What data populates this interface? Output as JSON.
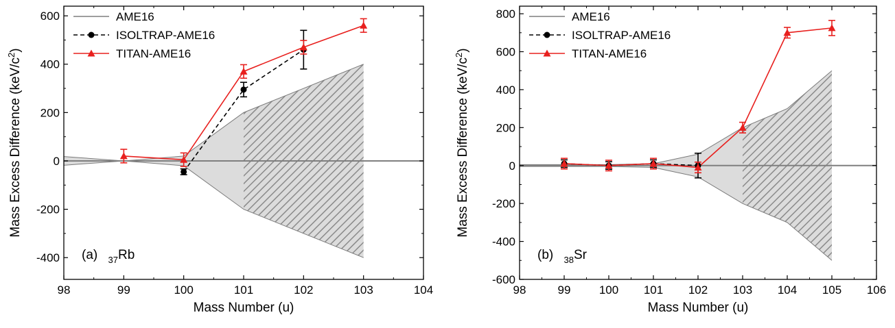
{
  "chart_data": [
    {
      "type": "line",
      "xlabel": "Mass Number (u)",
      "ylabel": "Mass Excess Difference (keV/c",
      "ylabel_sup": "2",
      "ylabel_close": ")",
      "xlim": [
        98,
        104
      ],
      "ylim": [
        -490,
        640
      ],
      "xticks": [
        "98",
        "99",
        "100",
        "101",
        "102",
        "103",
        "104"
      ],
      "yticks": [
        "-400",
        "-200",
        "0",
        "200",
        "400",
        "600"
      ],
      "ytick_values": [
        -400,
        -200,
        0,
        200,
        400,
        600
      ],
      "xtick_values": [
        98,
        99,
        100,
        101,
        102,
        103,
        104
      ],
      "annotation": {
        "prefix": "(a)",
        "subscript": "37",
        "element": "Rb"
      },
      "legend": [
        "AME16",
        "ISOLTRAP-AME16",
        "TITAN-AME16"
      ],
      "ame16_band": {
        "x": [
          98,
          99,
          100,
          101,
          102,
          103
        ],
        "upper": [
          18,
          0,
          20,
          200,
          300,
          400
        ],
        "lower": [
          -18,
          0,
          -20,
          -200,
          -300,
          -400
        ],
        "hatched_from_x": 101
      },
      "series": [
        {
          "name": "ISOLTRAP-AME16",
          "color": "#000000",
          "style": "dashed",
          "marker": "circle",
          "x": [
            100,
            101,
            102
          ],
          "y": [
            -45,
            295,
            460
          ],
          "err": [
            12,
            30,
            80
          ]
        },
        {
          "name": "TITAN-AME16",
          "color": "#e8201e",
          "style": "solid",
          "marker": "triangle",
          "x": [
            99,
            100,
            101,
            102,
            103
          ],
          "y": [
            20,
            5,
            370,
            470,
            560
          ],
          "err": [
            28,
            28,
            28,
            28,
            28
          ]
        }
      ]
    },
    {
      "type": "line",
      "xlabel": "Mass Number (u)",
      "ylabel": "Mass Excess Difference (keV/c",
      "ylabel_sup": "2",
      "ylabel_close": ")",
      "xlim": [
        98,
        106
      ],
      "ylim": [
        -600,
        840
      ],
      "xticks": [
        "98",
        "99",
        "100",
        "101",
        "102",
        "103",
        "104",
        "105",
        "106"
      ],
      "yticks": [
        "-600",
        "-400",
        "-200",
        "0",
        "200",
        "400",
        "600",
        "800"
      ],
      "ytick_values": [
        -600,
        -400,
        -200,
        0,
        200,
        400,
        600,
        800
      ],
      "xtick_values": [
        98,
        99,
        100,
        101,
        102,
        103,
        104,
        105,
        106
      ],
      "annotation": {
        "prefix": "(b)",
        "subscript": "38",
        "element": "Sr"
      },
      "legend": [
        "AME16",
        "ISOLTRAP-AME16",
        "TITAN-AME16"
      ],
      "ame16_band": {
        "x": [
          98,
          99,
          100,
          101,
          102,
          103,
          104,
          105
        ],
        "upper": [
          5,
          5,
          5,
          10,
          60,
          200,
          300,
          500
        ],
        "lower": [
          -5,
          -5,
          -5,
          -10,
          -60,
          -200,
          -300,
          -500
        ],
        "hatched_from_x": 103
      },
      "series": [
        {
          "name": "ISOLTRAP-AME16",
          "color": "#000000",
          "style": "dashed",
          "marker": "circle",
          "x": [
            99,
            100,
            101,
            102
          ],
          "y": [
            10,
            0,
            10,
            0
          ],
          "err": [
            20,
            20,
            20,
            65
          ]
        },
        {
          "name": "TITAN-AME16",
          "color": "#e8201e",
          "style": "solid",
          "marker": "triangle",
          "x": [
            99,
            100,
            101,
            102,
            103,
            104,
            105
          ],
          "y": [
            10,
            0,
            10,
            -10,
            200,
            700,
            725
          ],
          "err": [
            28,
            28,
            28,
            28,
            28,
            28,
            40
          ]
        }
      ]
    }
  ]
}
